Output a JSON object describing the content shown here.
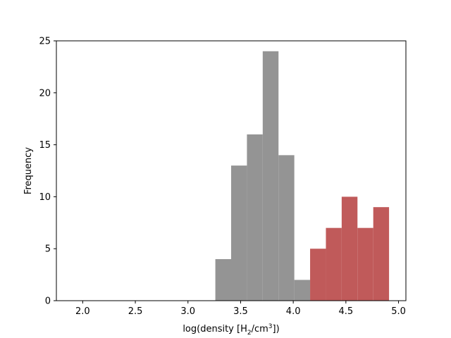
{
  "chart_data": {
    "type": "bar",
    "title": "",
    "xlabel_prefix": "log(density [H",
    "xlabel_sub": "2",
    "xlabel_mid": "/cm",
    "xlabel_sup": "3",
    "xlabel_suffix": "])",
    "ylabel": "Frequency",
    "xlim": [
      1.75,
      5.07
    ],
    "ylim": [
      0,
      25
    ],
    "xticks": [
      2.0,
      2.5,
      3.0,
      3.5,
      4.0,
      4.5,
      5.0
    ],
    "xtick_labels": [
      "2.0",
      "2.5",
      "3.0",
      "3.5",
      "4.0",
      "4.5",
      "5.0"
    ],
    "yticks": [
      0,
      5,
      10,
      15,
      20,
      25
    ],
    "ytick_labels": [
      "0",
      "5",
      "10",
      "15",
      "20",
      "25"
    ],
    "grid": false,
    "series": [
      {
        "color": "#949494",
        "bins": [
          {
            "x0": 3.26,
            "x1": 3.41,
            "value": 4
          },
          {
            "x0": 3.41,
            "x1": 3.56,
            "value": 13
          },
          {
            "x0": 3.56,
            "x1": 3.71,
            "value": 16
          },
          {
            "x0": 3.71,
            "x1": 3.86,
            "value": 24
          },
          {
            "x0": 3.86,
            "x1": 4.01,
            "value": 14
          },
          {
            "x0": 4.01,
            "x1": 4.16,
            "value": 2
          }
        ]
      },
      {
        "color": "#c05a5a",
        "bins": [
          {
            "x0": 4.16,
            "x1": 4.31,
            "value": 5
          },
          {
            "x0": 4.31,
            "x1": 4.46,
            "value": 7
          },
          {
            "x0": 4.46,
            "x1": 4.61,
            "value": 10
          },
          {
            "x0": 4.61,
            "x1": 4.76,
            "value": 7
          },
          {
            "x0": 4.76,
            "x1": 4.91,
            "value": 9
          }
        ]
      }
    ]
  }
}
